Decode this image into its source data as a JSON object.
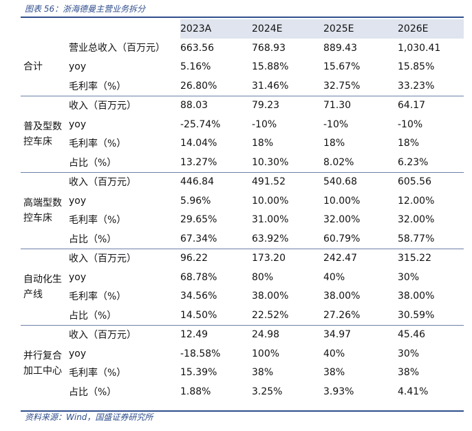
{
  "caption": "图表 56：浙海德曼主营业务拆分",
  "source": "资料来源：Wind，国盛证券研究所",
  "columns": [
    "2023A",
    "2024E",
    "2025E",
    "2026E"
  ],
  "groups": [
    {
      "name": "合计",
      "rows": [
        {
          "label": "营业总收入（百万元）",
          "values": [
            "663.56",
            "768.93",
            "889.43",
            "1,030.41"
          ]
        },
        {
          "label": "yoy",
          "values": [
            "5.16%",
            "15.88%",
            "15.67%",
            "15.85%"
          ]
        },
        {
          "label": "毛利率（%）",
          "values": [
            "26.80%",
            "31.46%",
            "32.75%",
            "33.23%"
          ]
        }
      ]
    },
    {
      "name": "普及型数控车床",
      "rows": [
        {
          "label": "收入（百万元）",
          "values": [
            "88.03",
            "79.23",
            "71.30",
            "64.17"
          ]
        },
        {
          "label": "yoy",
          "values": [
            "-25.74%",
            "-10%",
            "-10%",
            "-10%"
          ]
        },
        {
          "label": "毛利率（%）",
          "values": [
            "14.04%",
            "18%",
            "18%",
            "18%"
          ]
        },
        {
          "label": "占比（%）",
          "values": [
            "13.27%",
            "10.30%",
            "8.02%",
            "6.23%"
          ]
        }
      ]
    },
    {
      "name": "高端型数控车床",
      "rows": [
        {
          "label": "收入（百万元）",
          "values": [
            "446.84",
            "491.52",
            "540.68",
            "605.56"
          ]
        },
        {
          "label": "yoy",
          "values": [
            "5.96%",
            "10.00%",
            "10.00%",
            "12.00%"
          ]
        },
        {
          "label": "毛利率（%）",
          "values": [
            "29.65%",
            "31.00%",
            "32.00%",
            "32.00%"
          ]
        },
        {
          "label": "占比（%）",
          "values": [
            "67.34%",
            "63.92%",
            "60.79%",
            "58.77%"
          ]
        }
      ]
    },
    {
      "name": "自动化生产线",
      "rows": [
        {
          "label": "收入（百万元）",
          "values": [
            "96.22",
            "173.20",
            "242.47",
            "315.22"
          ]
        },
        {
          "label": "yoy",
          "values": [
            "68.78%",
            "80%",
            "40%",
            "30%"
          ]
        },
        {
          "label": "毛利率（%）",
          "values": [
            "34.56%",
            "38.00%",
            "38.00%",
            "38.00%"
          ]
        },
        {
          "label": "占比（%）",
          "values": [
            "14.50%",
            "22.52%",
            "27.26%",
            "30.59%"
          ]
        }
      ]
    },
    {
      "name": "并行复合加工中心",
      "rows": [
        {
          "label": "收入（百万元）",
          "values": [
            "12.49",
            "24.98",
            "34.97",
            "45.46"
          ]
        },
        {
          "label": "yoy",
          "values": [
            "-18.58%",
            "100%",
            "40%",
            "30%"
          ]
        },
        {
          "label": "毛利率（%）",
          "values": [
            "15.39%",
            "38%",
            "38%",
            "38%"
          ]
        },
        {
          "label": "占比（%）",
          "values": [
            "1.88%",
            "3.25%",
            "3.93%",
            "4.41%"
          ]
        }
      ]
    }
  ]
}
